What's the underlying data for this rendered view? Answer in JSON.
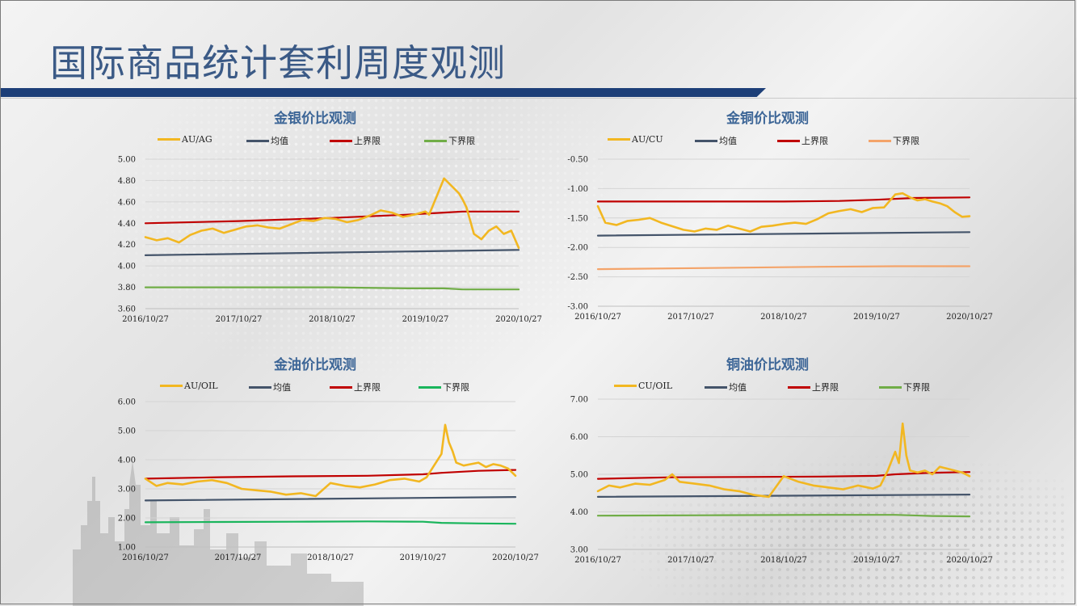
{
  "page": {
    "title": "国际商品统计套利周度观测",
    "colors": {
      "title_bar": "#1d3f78",
      "title_text": "#3b5a86",
      "chart_title": "#3d6697"
    }
  },
  "chart_data": [
    {
      "type": "line",
      "title": "金银价比观测",
      "xlabel": "",
      "ylabel": "",
      "x_ticks": [
        "2016/10/27",
        "2017/10/27",
        "2018/10/27",
        "2019/10/27",
        "2020/10/27"
      ],
      "y_ticks": [
        "5.00",
        "4.80",
        "4.60",
        "4.40",
        "4.20",
        "4.00",
        "3.80",
        "3.60"
      ],
      "ylim": [
        3.6,
        5.0
      ],
      "grid": true,
      "legend_position": "top",
      "series": [
        {
          "name": "AU/AG",
          "color": "#f2b721",
          "width": 2.6,
          "x": [
            0,
            0.03,
            0.06,
            0.09,
            0.12,
            0.15,
            0.18,
            0.21,
            0.24,
            0.27,
            0.3,
            0.33,
            0.36,
            0.39,
            0.42,
            0.45,
            0.48,
            0.51,
            0.54,
            0.57,
            0.6,
            0.63,
            0.66,
            0.69,
            0.72,
            0.75,
            0.76,
            0.78,
            0.8,
            0.82,
            0.84,
            0.85,
            0.86,
            0.88,
            0.9,
            0.92,
            0.94,
            0.96,
            0.98,
            1.0
          ],
          "y": [
            4.27,
            4.24,
            4.26,
            4.22,
            4.29,
            4.33,
            4.35,
            4.31,
            4.34,
            4.37,
            4.38,
            4.36,
            4.35,
            4.39,
            4.43,
            4.42,
            4.45,
            4.44,
            4.41,
            4.43,
            4.47,
            4.52,
            4.5,
            4.46,
            4.48,
            4.51,
            4.48,
            4.65,
            4.82,
            4.75,
            4.68,
            4.62,
            4.55,
            4.3,
            4.25,
            4.33,
            4.37,
            4.3,
            4.33,
            4.17
          ]
        },
        {
          "name": "均值",
          "color": "#44546a",
          "width": 2.2,
          "x": [
            0,
            1.0
          ],
          "y": [
            4.1,
            4.15
          ]
        },
        {
          "name": "上界限",
          "color": "#c00000",
          "width": 2.2,
          "x": [
            0,
            0.25,
            0.5,
            0.7,
            0.8,
            0.85,
            0.9,
            1.0
          ],
          "y": [
            4.4,
            4.42,
            4.45,
            4.48,
            4.5,
            4.51,
            4.51,
            4.51
          ]
        },
        {
          "name": "下界限",
          "color": "#70ad47",
          "width": 2.2,
          "x": [
            0,
            0.25,
            0.5,
            0.7,
            0.8,
            0.85,
            0.9,
            1.0
          ],
          "y": [
            3.8,
            3.8,
            3.8,
            3.79,
            3.79,
            3.78,
            3.78,
            3.78
          ]
        }
      ]
    },
    {
      "type": "line",
      "title": "金铜价比观测",
      "xlabel": "",
      "ylabel": "",
      "x_ticks": [
        "2016/10/27",
        "2017/10/27",
        "2018/10/27",
        "2019/10/27",
        "2020/10/27"
      ],
      "y_ticks": [
        "-0.50",
        "-1.00",
        "-1.50",
        "-2.00",
        "-2.50",
        "-3.00"
      ],
      "ylim": [
        -3.0,
        -0.5
      ],
      "grid": true,
      "legend_position": "top",
      "series": [
        {
          "name": "AU/CU",
          "color": "#f2b721",
          "width": 2.6,
          "x": [
            0,
            0.02,
            0.05,
            0.08,
            0.11,
            0.14,
            0.17,
            0.2,
            0.23,
            0.26,
            0.29,
            0.32,
            0.35,
            0.38,
            0.41,
            0.44,
            0.47,
            0.5,
            0.53,
            0.56,
            0.59,
            0.62,
            0.65,
            0.68,
            0.71,
            0.74,
            0.77,
            0.8,
            0.82,
            0.84,
            0.86,
            0.88,
            0.9,
            0.92,
            0.94,
            0.96,
            0.98,
            1.0
          ],
          "y": [
            -1.3,
            -1.58,
            -1.62,
            -1.55,
            -1.53,
            -1.5,
            -1.58,
            -1.64,
            -1.7,
            -1.73,
            -1.68,
            -1.7,
            -1.63,
            -1.68,
            -1.73,
            -1.65,
            -1.63,
            -1.6,
            -1.58,
            -1.6,
            -1.52,
            -1.42,
            -1.38,
            -1.35,
            -1.4,
            -1.33,
            -1.32,
            -1.1,
            -1.08,
            -1.15,
            -1.2,
            -1.18,
            -1.22,
            -1.25,
            -1.3,
            -1.4,
            -1.48,
            -1.47
          ]
        },
        {
          "name": "均值",
          "color": "#44546a",
          "width": 2.2,
          "x": [
            0,
            1.0
          ],
          "y": [
            -1.8,
            -1.74
          ]
        },
        {
          "name": "上界限",
          "color": "#c00000",
          "width": 2.2,
          "x": [
            0,
            0.25,
            0.5,
            0.65,
            0.75,
            0.85,
            1.0
          ],
          "y": [
            -1.22,
            -1.22,
            -1.22,
            -1.21,
            -1.19,
            -1.16,
            -1.15
          ]
        },
        {
          "name": "下界限",
          "color": "#f4a46a",
          "width": 2.2,
          "x": [
            0,
            0.3,
            0.6,
            0.8,
            1.0
          ],
          "y": [
            -2.37,
            -2.35,
            -2.33,
            -2.32,
            -2.32
          ]
        }
      ]
    },
    {
      "type": "line",
      "title": "金油价比观测",
      "xlabel": "",
      "ylabel": "",
      "x_ticks": [
        "2016/10/27",
        "2017/10/27",
        "2018/10/27",
        "2019/10/27",
        "2020/10/27"
      ],
      "y_ticks": [
        "6.00",
        "5.00",
        "4.00",
        "3.00",
        "2.00",
        "1.00"
      ],
      "ylim": [
        1.0,
        6.0
      ],
      "grid": true,
      "legend_position": "top",
      "series": [
        {
          "name": "AU/OIL",
          "color": "#f2b721",
          "width": 2.6,
          "x": [
            0,
            0.03,
            0.06,
            0.1,
            0.14,
            0.18,
            0.22,
            0.26,
            0.3,
            0.34,
            0.38,
            0.42,
            0.46,
            0.5,
            0.54,
            0.58,
            0.62,
            0.66,
            0.7,
            0.74,
            0.76,
            0.78,
            0.8,
            0.81,
            0.82,
            0.83,
            0.84,
            0.86,
            0.88,
            0.9,
            0.92,
            0.94,
            0.96,
            0.98,
            1.0
          ],
          "y": [
            3.35,
            3.1,
            3.2,
            3.15,
            3.25,
            3.3,
            3.2,
            3.0,
            2.95,
            2.9,
            2.8,
            2.85,
            2.75,
            3.2,
            3.1,
            3.05,
            3.15,
            3.3,
            3.35,
            3.25,
            3.4,
            3.8,
            4.2,
            5.2,
            4.6,
            4.3,
            3.9,
            3.8,
            3.85,
            3.9,
            3.75,
            3.85,
            3.8,
            3.7,
            3.45
          ]
        },
        {
          "name": "均值",
          "color": "#44546a",
          "width": 2.2,
          "x": [
            0,
            1.0
          ],
          "y": [
            2.6,
            2.72
          ]
        },
        {
          "name": "上界限",
          "color": "#c00000",
          "width": 2.2,
          "x": [
            0,
            0.2,
            0.4,
            0.6,
            0.75,
            0.8,
            0.9,
            1.0
          ],
          "y": [
            3.35,
            3.4,
            3.43,
            3.45,
            3.5,
            3.55,
            3.62,
            3.65
          ]
        },
        {
          "name": "下界限",
          "color": "#1ab55c",
          "width": 2.2,
          "x": [
            0,
            0.2,
            0.4,
            0.6,
            0.75,
            0.8,
            0.9,
            1.0
          ],
          "y": [
            1.85,
            1.86,
            1.87,
            1.88,
            1.87,
            1.83,
            1.81,
            1.8
          ]
        }
      ]
    },
    {
      "type": "line",
      "title": "铜油价比观测",
      "xlabel": "",
      "ylabel": "",
      "x_ticks": [
        "2016/10/27",
        "2017/10/27",
        "2018/10/27",
        "2019/10/27",
        "2020/10/27"
      ],
      "y_ticks": [
        "7.00",
        "6.00",
        "5.00",
        "4.00",
        "3.00"
      ],
      "ylim": [
        3.0,
        7.0
      ],
      "grid": true,
      "legend_position": "top",
      "series": [
        {
          "name": "CU/OIL",
          "color": "#f2b721",
          "width": 2.6,
          "x": [
            0,
            0.03,
            0.06,
            0.1,
            0.14,
            0.18,
            0.2,
            0.22,
            0.26,
            0.3,
            0.34,
            0.38,
            0.42,
            0.46,
            0.5,
            0.54,
            0.58,
            0.62,
            0.66,
            0.7,
            0.74,
            0.76,
            0.78,
            0.8,
            0.81,
            0.82,
            0.83,
            0.84,
            0.86,
            0.88,
            0.9,
            0.92,
            0.94,
            0.96,
            0.98,
            1.0
          ],
          "y": [
            4.55,
            4.7,
            4.65,
            4.75,
            4.72,
            4.85,
            5.0,
            4.8,
            4.75,
            4.7,
            4.6,
            4.55,
            4.45,
            4.4,
            4.95,
            4.8,
            4.7,
            4.65,
            4.6,
            4.7,
            4.62,
            4.7,
            5.1,
            5.6,
            5.3,
            6.35,
            5.5,
            5.1,
            5.05,
            5.1,
            5.0,
            5.2,
            5.15,
            5.1,
            5.05,
            4.95
          ]
        },
        {
          "name": "均值",
          "color": "#44546a",
          "width": 2.2,
          "x": [
            0,
            1.0
          ],
          "y": [
            4.4,
            4.46
          ]
        },
        {
          "name": "上界限",
          "color": "#c00000",
          "width": 2.2,
          "x": [
            0,
            0.2,
            0.4,
            0.6,
            0.75,
            0.8,
            0.9,
            1.0
          ],
          "y": [
            4.88,
            4.92,
            4.93,
            4.94,
            4.96,
            5.0,
            5.04,
            5.06
          ]
        },
        {
          "name": "下界限",
          "color": "#70ad47",
          "width": 2.2,
          "x": [
            0,
            0.3,
            0.6,
            0.8,
            0.9,
            1.0
          ],
          "y": [
            3.9,
            3.91,
            3.92,
            3.92,
            3.89,
            3.88
          ]
        }
      ]
    }
  ]
}
